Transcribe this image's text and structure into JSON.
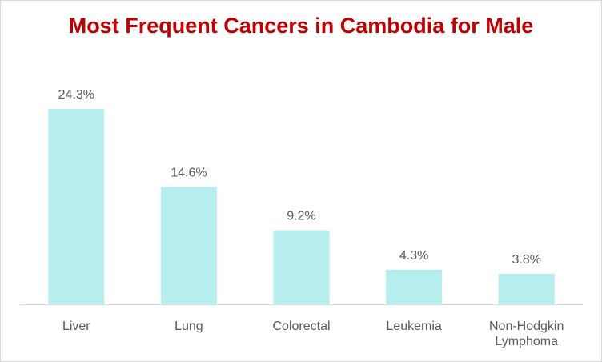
{
  "chart_data": {
    "type": "bar",
    "title": "Most Frequent Cancers in Cambodia for Male",
    "categories": [
      "Liver",
      "Lung",
      "Colorectal",
      "Leukemia",
      "Non-Hodgkin Lymphoma"
    ],
    "category_lines": [
      [
        "Liver"
      ],
      [
        "Lung"
      ],
      [
        "Colorectal"
      ],
      [
        "Leukemia"
      ],
      [
        "Non-Hodgkin",
        "Lymphoma"
      ]
    ],
    "values": [
      24.3,
      14.6,
      9.2,
      4.3,
      3.8
    ],
    "data_labels": [
      "24.3%",
      "14.6%",
      "9.2%",
      "4.3%",
      "3.8%"
    ],
    "xlabel": "",
    "ylabel": "",
    "ylim": [
      0,
      24.3
    ],
    "grid": false,
    "legend": "none",
    "bar_color": "#b6eeee",
    "axis_color": "#d9d9d9",
    "label_color": "#595959",
    "title_color": "#c00000"
  }
}
